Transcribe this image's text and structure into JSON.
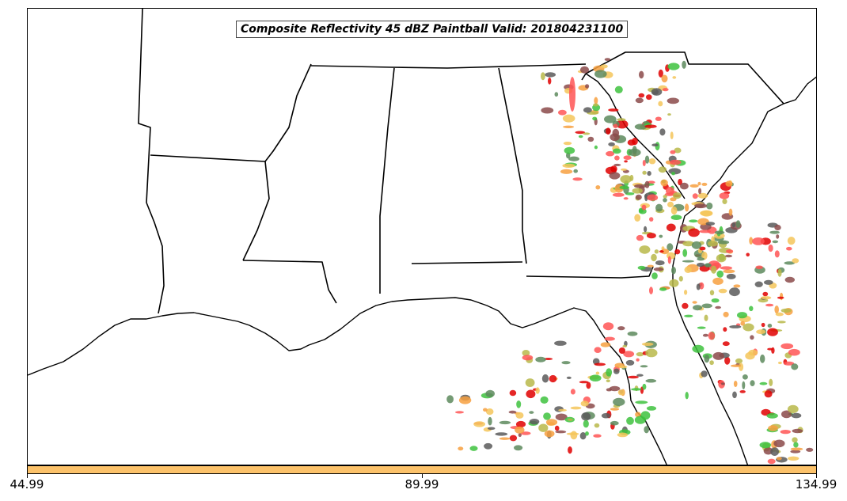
{
  "title": "Composite Reflectivity 45 dBZ Paintball Valid: 201804231100",
  "colorbar": {
    "color": "#fcc26a",
    "ticks": [
      "44.99",
      "89.99",
      "134.99"
    ]
  },
  "member_colors": [
    "#ff5555",
    "#e00000",
    "#f7a040",
    "#b8b84a",
    "#3ec23e",
    "#5d8a5d",
    "#8b4a4a",
    "#5a5a5a",
    "#f5c65a"
  ]
}
